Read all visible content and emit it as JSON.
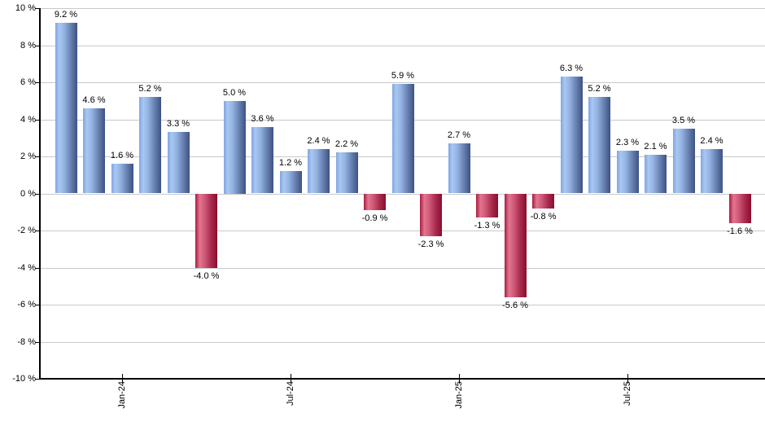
{
  "chart_data": {
    "type": "bar",
    "title": "",
    "unit": "%",
    "grid": true,
    "legend": null,
    "bars": [
      {
        "value": 9.2,
        "label": "9.2 %"
      },
      {
        "value": 4.6,
        "label": "4.6 %"
      },
      {
        "value": 1.6,
        "label": "1.6 %"
      },
      {
        "value": 5.2,
        "label": "5.2 %"
      },
      {
        "value": 3.3,
        "label": "3.3 %"
      },
      {
        "value": -4.0,
        "label": "-4.0 %"
      },
      {
        "value": 5.0,
        "label": "5.0 %"
      },
      {
        "value": 3.6,
        "label": "3.6 %"
      },
      {
        "value": 1.2,
        "label": "1.2 %"
      },
      {
        "value": 2.4,
        "label": "2.4 %"
      },
      {
        "value": 2.2,
        "label": "2.2 %"
      },
      {
        "value": -0.9,
        "label": "-0.9 %"
      },
      {
        "value": 5.9,
        "label": "5.9 %"
      },
      {
        "value": -2.3,
        "label": "-2.3 %"
      },
      {
        "value": 2.7,
        "label": "2.7 %"
      },
      {
        "value": -1.3,
        "label": "-1.3 %"
      },
      {
        "value": -5.6,
        "label": "-5.6 %"
      },
      {
        "value": -0.8,
        "label": "-0.8 %"
      },
      {
        "value": 6.3,
        "label": "6.3 %"
      },
      {
        "value": 5.2,
        "label": "5.2 %"
      },
      {
        "value": 2.3,
        "label": "2.3 %"
      },
      {
        "value": 2.1,
        "label": "2.1 %"
      },
      {
        "value": 3.5,
        "label": "3.5 %"
      },
      {
        "value": 2.4,
        "label": "2.4 %"
      },
      {
        "value": -1.6,
        "label": "-1.6 %"
      }
    ],
    "y_axis": {
      "range": [
        -10,
        10
      ],
      "ticks": [
        {
          "value": 10,
          "label": "10 %"
        },
        {
          "value": 8,
          "label": "8 %"
        },
        {
          "value": 6,
          "label": "6 %"
        },
        {
          "value": 4,
          "label": "4 %"
        },
        {
          "value": 2,
          "label": "2 %"
        },
        {
          "value": 0,
          "label": "0 %"
        },
        {
          "value": -2,
          "label": "-2 %"
        },
        {
          "value": -4,
          "label": "-4 %"
        },
        {
          "value": -6,
          "label": "-6 %"
        },
        {
          "value": -8,
          "label": "-8 %"
        },
        {
          "value": -10,
          "label": "-10 %"
        }
      ]
    },
    "x_axis": {
      "ticks": [
        {
          "label": "Jan-24",
          "bar_index": 2
        },
        {
          "label": "Jul-24",
          "bar_index": 8
        },
        {
          "label": "Jan-25",
          "bar_index": 14
        },
        {
          "label": "Jul-25",
          "bar_index": 20
        }
      ]
    },
    "colors": {
      "positive_bar": "#7ea6e2",
      "positive_bar_highlight": "#abc7f1",
      "positive_bar_shadow": "#3e5284",
      "negative_bar": "#d05a78",
      "negative_bar_highlight": "#e27590",
      "negative_bar_shadow": "#8a0d2d",
      "gridline": "#c9c9c9",
      "axis": "#000000",
      "label_text": "#000000",
      "background": "#ffffff"
    }
  }
}
